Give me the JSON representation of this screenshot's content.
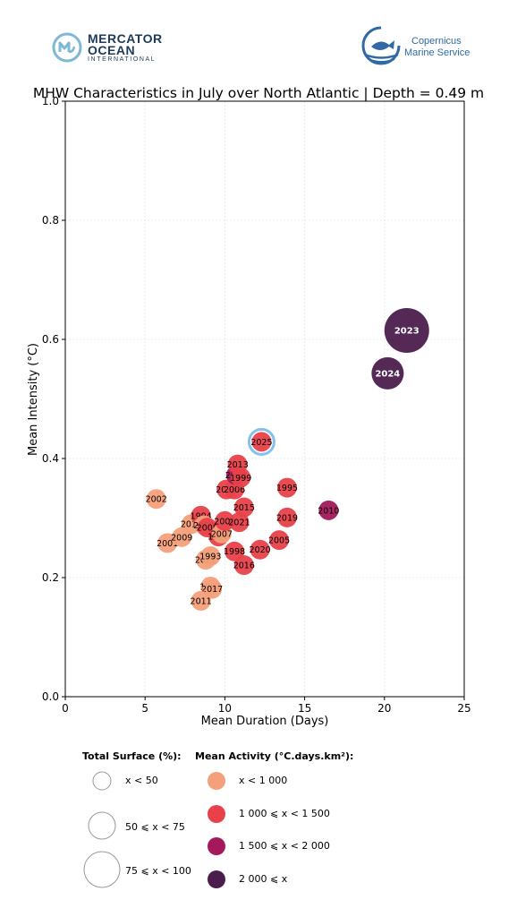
{
  "logos": {
    "mercator": {
      "line1": "MERCATOR",
      "line2": "OCEAN",
      "line3": "INTERNATIONAL"
    },
    "copernicus": {
      "line1": "Copernicus",
      "line2": "Marine Service"
    }
  },
  "chart_data": {
    "type": "scatter",
    "title": "MHW Characteristics in July over North Atlantic | Depth = 0.49 m",
    "xlabel": "Mean Duration (Days)",
    "ylabel": "Mean Intensity (°C)",
    "xlim": [
      0,
      25
    ],
    "ylim": [
      0,
      1.0
    ],
    "xticks": [
      "0",
      "5",
      "10",
      "15",
      "20",
      "25"
    ],
    "yticks": [
      "0.0",
      "0.2",
      "0.4",
      "0.6",
      "0.8",
      "1.0"
    ],
    "grid": true,
    "colors": {
      "low": "#f4a07a",
      "mid": "#e8414a",
      "high": "#a3195b",
      "top": "#4b1d4d",
      "highlight": "#85c1ef"
    },
    "points": [
      {
        "year": "2002",
        "x": 5.7,
        "y": 0.332,
        "cls": "low",
        "size": "s"
      },
      {
        "year": "2001",
        "x": 6.4,
        "y": 0.258,
        "cls": "low",
        "size": "s"
      },
      {
        "year": "2009",
        "x": 7.3,
        "y": 0.268,
        "cls": "low",
        "size": "s"
      },
      {
        "year": "2012",
        "x": 7.9,
        "y": 0.29,
        "cls": "low",
        "size": "s"
      },
      {
        "year": "1994",
        "x": 8.5,
        "y": 0.304,
        "cls": "mid",
        "size": "s"
      },
      {
        "year": "2000",
        "x": 8.7,
        "y": 0.288,
        "cls": "low",
        "size": "s"
      },
      {
        "year": "2008",
        "x": 8.9,
        "y": 0.284,
        "cls": "mid",
        "size": "s"
      },
      {
        "year": "2022",
        "x": 8.8,
        "y": 0.23,
        "cls": "low",
        "size": "s"
      },
      {
        "year": "1993",
        "x": 9.1,
        "y": 0.236,
        "cls": "low",
        "size": "s"
      },
      {
        "year": "1997",
        "x": 9.1,
        "y": 0.185,
        "cls": "low",
        "size": "s"
      },
      {
        "year": "2017",
        "x": 9.2,
        "y": 0.181,
        "cls": "low",
        "size": "s"
      },
      {
        "year": "2011",
        "x": 8.5,
        "y": 0.161,
        "cls": "low",
        "size": "s"
      },
      {
        "year": "1996",
        "x": 9.6,
        "y": 0.269,
        "cls": "mid",
        "size": "s"
      },
      {
        "year": "2007",
        "x": 9.8,
        "y": 0.274,
        "cls": "low",
        "size": "s"
      },
      {
        "year": "2003",
        "x": 10.0,
        "y": 0.295,
        "cls": "mid",
        "size": "s"
      },
      {
        "year": "1998",
        "x": 10.6,
        "y": 0.244,
        "cls": "mid",
        "size": "s"
      },
      {
        "year": "2021",
        "x": 10.9,
        "y": 0.293,
        "cls": "mid",
        "size": "s"
      },
      {
        "year": "2015",
        "x": 11.2,
        "y": 0.318,
        "cls": "mid",
        "size": "s"
      },
      {
        "year": "2016",
        "x": 11.2,
        "y": 0.221,
        "cls": "mid",
        "size": "s"
      },
      {
        "year": "2014",
        "x": 10.1,
        "y": 0.348,
        "cls": "mid",
        "size": "s"
      },
      {
        "year": "2006",
        "x": 10.6,
        "y": 0.348,
        "cls": "mid",
        "size": "s"
      },
      {
        "year": "2018",
        "x": 10.7,
        "y": 0.372,
        "cls": "high",
        "size": "s"
      },
      {
        "year": "1999",
        "x": 11.0,
        "y": 0.368,
        "cls": "mid",
        "size": "s"
      },
      {
        "year": "2013",
        "x": 10.8,
        "y": 0.39,
        "cls": "mid",
        "size": "s"
      },
      {
        "year": "2020",
        "x": 12.2,
        "y": 0.247,
        "cls": "mid",
        "size": "s"
      },
      {
        "year": "2025",
        "x": 12.3,
        "y": 0.428,
        "cls": "mid",
        "size": "s",
        "highlight": true
      },
      {
        "year": "2005",
        "x": 13.4,
        "y": 0.263,
        "cls": "mid",
        "size": "s"
      },
      {
        "year": "2019",
        "x": 13.9,
        "y": 0.301,
        "cls": "mid",
        "size": "s"
      },
      {
        "year": "1995",
        "x": 13.9,
        "y": 0.351,
        "cls": "mid",
        "size": "s"
      },
      {
        "year": "2010",
        "x": 16.5,
        "y": 0.313,
        "cls": "high",
        "size": "s"
      },
      {
        "year": "2024",
        "x": 20.2,
        "y": 0.543,
        "cls": "top",
        "size": "m"
      },
      {
        "year": "2023",
        "x": 21.4,
        "y": 0.615,
        "cls": "top",
        "size": "l"
      }
    ],
    "legend": {
      "surface_title": "Total Surface (%):",
      "surface_items": [
        {
          "label": "x < 50",
          "size": "s"
        },
        {
          "label": "50 ⩽ x < 75",
          "size": "m"
        },
        {
          "label": "75 ⩽ x < 100",
          "size": "l"
        }
      ],
      "activity_title": "Mean Activity (°C.days.km²):",
      "activity_items": [
        {
          "label": "x < 1 000",
          "cls": "low"
        },
        {
          "label": "1 000 ⩽ x < 1 500",
          "cls": "mid"
        },
        {
          "label": "1 500 ⩽ x < 2 000",
          "cls": "high"
        },
        {
          "label": "2 000 ⩽ x",
          "cls": "top"
        }
      ]
    }
  }
}
